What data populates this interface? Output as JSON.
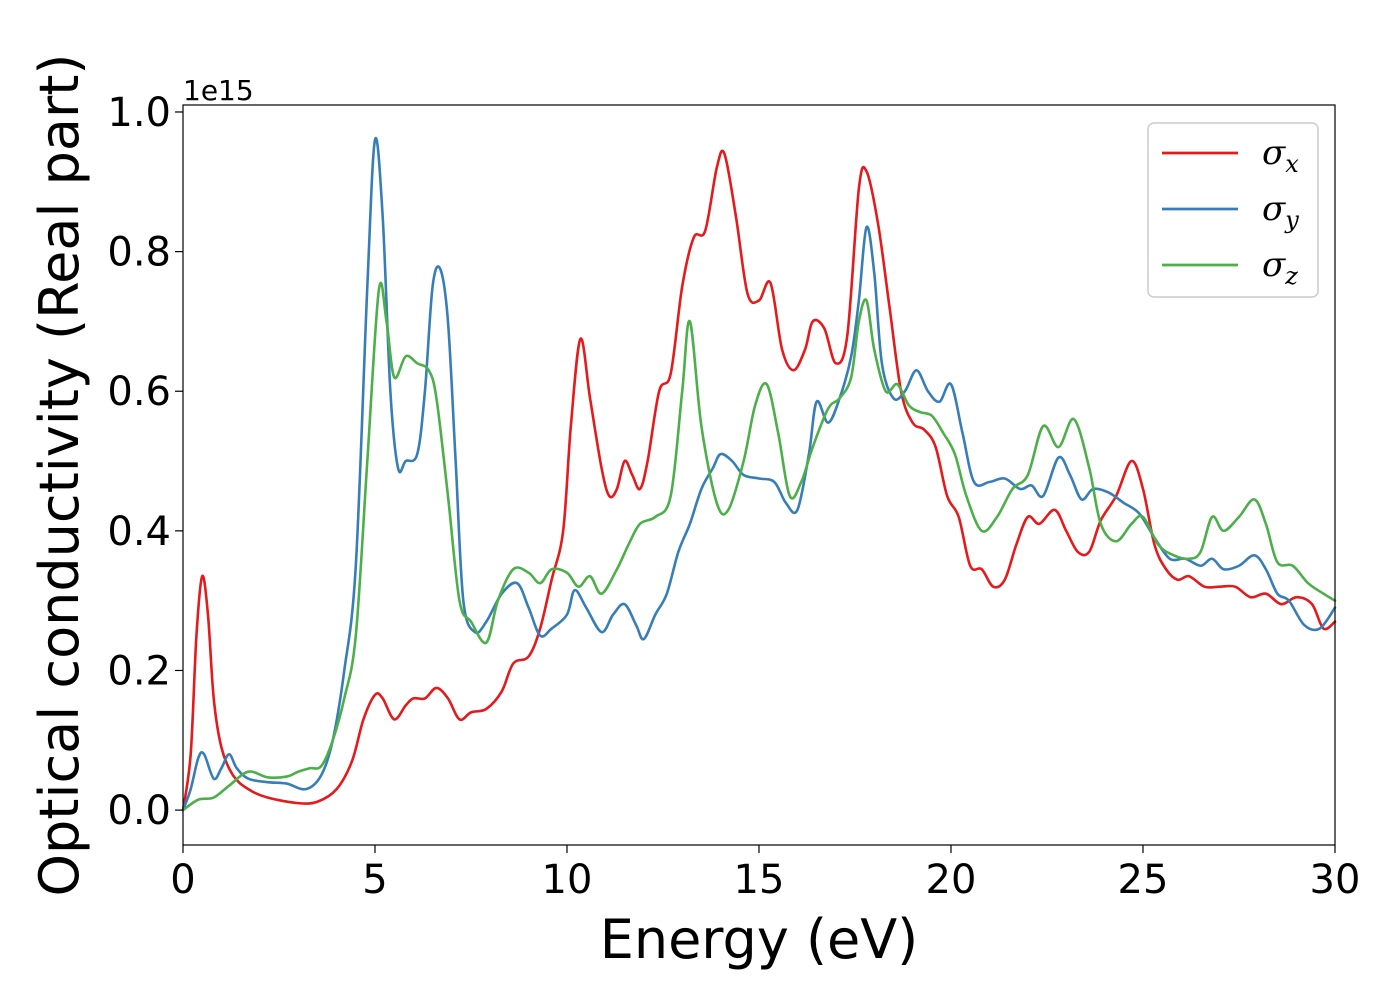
{
  "chart_data": {
    "type": "line",
    "xlabel": "Energy (eV)",
    "ylabel": "Optical conductivity (Real part)",
    "y_offset_label": "1e15",
    "xlim": [
      0,
      30
    ],
    "ylim": [
      -0.05,
      1.01
    ],
    "xticks": [
      0,
      5,
      10,
      15,
      20,
      25,
      30
    ],
    "xtick_labels": [
      "0",
      "5",
      "10",
      "15",
      "20",
      "25",
      "30"
    ],
    "yticks": [
      0.0,
      0.2,
      0.4,
      0.6,
      0.8,
      1.0
    ],
    "ytick_labels": [
      "0.0",
      "0.2",
      "0.4",
      "0.6",
      "0.8",
      "1.0"
    ],
    "grid": false,
    "legend_position": "top-right",
    "series": [
      {
        "name": "σ",
        "sub": "x",
        "color": "#e41a1c",
        "points": [
          [
            0,
            0
          ],
          [
            0.2,
            0.08
          ],
          [
            0.35,
            0.25
          ],
          [
            0.5,
            0.335
          ],
          [
            0.65,
            0.28
          ],
          [
            0.8,
            0.16
          ],
          [
            1.0,
            0.09
          ],
          [
            1.3,
            0.05
          ],
          [
            1.7,
            0.03
          ],
          [
            2.2,
            0.018
          ],
          [
            3.0,
            0.01
          ],
          [
            3.5,
            0.012
          ],
          [
            4.0,
            0.03
          ],
          [
            4.4,
            0.07
          ],
          [
            4.7,
            0.13
          ],
          [
            5.0,
            0.165
          ],
          [
            5.2,
            0.16
          ],
          [
            5.5,
            0.13
          ],
          [
            5.8,
            0.15
          ],
          [
            6.0,
            0.16
          ],
          [
            6.3,
            0.16
          ],
          [
            6.6,
            0.175
          ],
          [
            6.9,
            0.16
          ],
          [
            7.2,
            0.13
          ],
          [
            7.5,
            0.14
          ],
          [
            7.9,
            0.145
          ],
          [
            8.3,
            0.17
          ],
          [
            8.6,
            0.21
          ],
          [
            9.0,
            0.22
          ],
          [
            9.3,
            0.26
          ],
          [
            9.6,
            0.33
          ],
          [
            9.9,
            0.4
          ],
          [
            10.1,
            0.55
          ],
          [
            10.35,
            0.675
          ],
          [
            10.6,
            0.59
          ],
          [
            10.9,
            0.49
          ],
          [
            11.1,
            0.45
          ],
          [
            11.3,
            0.46
          ],
          [
            11.5,
            0.5
          ],
          [
            11.7,
            0.48
          ],
          [
            11.9,
            0.46
          ],
          [
            12.1,
            0.5
          ],
          [
            12.4,
            0.6
          ],
          [
            12.7,
            0.625
          ],
          [
            13.0,
            0.75
          ],
          [
            13.3,
            0.82
          ],
          [
            13.6,
            0.83
          ],
          [
            13.9,
            0.92
          ],
          [
            14.1,
            0.94
          ],
          [
            14.4,
            0.85
          ],
          [
            14.7,
            0.74
          ],
          [
            15.0,
            0.73
          ],
          [
            15.3,
            0.755
          ],
          [
            15.6,
            0.66
          ],
          [
            15.9,
            0.63
          ],
          [
            16.2,
            0.66
          ],
          [
            16.4,
            0.7
          ],
          [
            16.7,
            0.69
          ],
          [
            17.0,
            0.64
          ],
          [
            17.3,
            0.68
          ],
          [
            17.6,
            0.89
          ],
          [
            17.8,
            0.915
          ],
          [
            18.1,
            0.84
          ],
          [
            18.4,
            0.72
          ],
          [
            18.7,
            0.6
          ],
          [
            19.0,
            0.555
          ],
          [
            19.3,
            0.545
          ],
          [
            19.6,
            0.52
          ],
          [
            19.9,
            0.45
          ],
          [
            20.2,
            0.42
          ],
          [
            20.5,
            0.35
          ],
          [
            20.8,
            0.345
          ],
          [
            21.1,
            0.32
          ],
          [
            21.4,
            0.33
          ],
          [
            21.7,
            0.38
          ],
          [
            22.0,
            0.42
          ],
          [
            22.3,
            0.41
          ],
          [
            22.7,
            0.43
          ],
          [
            23.0,
            0.4
          ],
          [
            23.3,
            0.37
          ],
          [
            23.6,
            0.37
          ],
          [
            23.9,
            0.415
          ],
          [
            24.3,
            0.45
          ],
          [
            24.7,
            0.5
          ],
          [
            25.0,
            0.46
          ],
          [
            25.3,
            0.38
          ],
          [
            25.6,
            0.345
          ],
          [
            25.9,
            0.33
          ],
          [
            26.2,
            0.335
          ],
          [
            26.6,
            0.32
          ],
          [
            27.0,
            0.32
          ],
          [
            27.4,
            0.32
          ],
          [
            27.8,
            0.305
          ],
          [
            28.2,
            0.31
          ],
          [
            28.6,
            0.295
          ],
          [
            29.0,
            0.305
          ],
          [
            29.4,
            0.295
          ],
          [
            29.7,
            0.26
          ],
          [
            30,
            0.27
          ]
        ]
      },
      {
        "name": "σ",
        "sub": "y",
        "color": "#377eb8",
        "points": [
          [
            0,
            0
          ],
          [
            0.2,
            0.03
          ],
          [
            0.4,
            0.075
          ],
          [
            0.55,
            0.08
          ],
          [
            0.8,
            0.045
          ],
          [
            1.0,
            0.06
          ],
          [
            1.2,
            0.08
          ],
          [
            1.4,
            0.06
          ],
          [
            1.7,
            0.045
          ],
          [
            2.2,
            0.04
          ],
          [
            2.7,
            0.038
          ],
          [
            3.2,
            0.03
          ],
          [
            3.6,
            0.05
          ],
          [
            3.9,
            0.1
          ],
          [
            4.2,
            0.2
          ],
          [
            4.5,
            0.35
          ],
          [
            4.8,
            0.75
          ],
          [
            5.0,
            0.96
          ],
          [
            5.2,
            0.85
          ],
          [
            5.4,
            0.6
          ],
          [
            5.6,
            0.49
          ],
          [
            5.8,
            0.5
          ],
          [
            6.1,
            0.51
          ],
          [
            6.3,
            0.6
          ],
          [
            6.5,
            0.75
          ],
          [
            6.7,
            0.775
          ],
          [
            6.9,
            0.7
          ],
          [
            7.1,
            0.5
          ],
          [
            7.3,
            0.3
          ],
          [
            7.6,
            0.255
          ],
          [
            7.9,
            0.27
          ],
          [
            8.3,
            0.31
          ],
          [
            8.7,
            0.325
          ],
          [
            9.0,
            0.29
          ],
          [
            9.3,
            0.25
          ],
          [
            9.6,
            0.26
          ],
          [
            10.0,
            0.28
          ],
          [
            10.2,
            0.315
          ],
          [
            10.5,
            0.29
          ],
          [
            10.9,
            0.255
          ],
          [
            11.2,
            0.28
          ],
          [
            11.5,
            0.295
          ],
          [
            11.8,
            0.265
          ],
          [
            12.0,
            0.245
          ],
          [
            12.3,
            0.28
          ],
          [
            12.6,
            0.31
          ],
          [
            12.9,
            0.37
          ],
          [
            13.2,
            0.41
          ],
          [
            13.5,
            0.46
          ],
          [
            13.8,
            0.49
          ],
          [
            14.0,
            0.51
          ],
          [
            14.3,
            0.5
          ],
          [
            14.6,
            0.48
          ],
          [
            15.0,
            0.475
          ],
          [
            15.4,
            0.47
          ],
          [
            15.7,
            0.44
          ],
          [
            16.0,
            0.43
          ],
          [
            16.3,
            0.51
          ],
          [
            16.5,
            0.585
          ],
          [
            16.8,
            0.555
          ],
          [
            17.1,
            0.59
          ],
          [
            17.4,
            0.65
          ],
          [
            17.6,
            0.73
          ],
          [
            17.8,
            0.835
          ],
          [
            18.0,
            0.77
          ],
          [
            18.2,
            0.64
          ],
          [
            18.5,
            0.59
          ],
          [
            18.8,
            0.6
          ],
          [
            19.1,
            0.63
          ],
          [
            19.4,
            0.6
          ],
          [
            19.7,
            0.585
          ],
          [
            20.0,
            0.61
          ],
          [
            20.3,
            0.54
          ],
          [
            20.6,
            0.47
          ],
          [
            21.0,
            0.47
          ],
          [
            21.4,
            0.475
          ],
          [
            21.8,
            0.46
          ],
          [
            22.1,
            0.465
          ],
          [
            22.4,
            0.45
          ],
          [
            22.8,
            0.505
          ],
          [
            23.1,
            0.48
          ],
          [
            23.4,
            0.445
          ],
          [
            23.7,
            0.46
          ],
          [
            24.1,
            0.455
          ],
          [
            24.5,
            0.44
          ],
          [
            24.9,
            0.425
          ],
          [
            25.3,
            0.39
          ],
          [
            25.7,
            0.36
          ],
          [
            26.1,
            0.36
          ],
          [
            26.5,
            0.35
          ],
          [
            26.8,
            0.36
          ],
          [
            27.1,
            0.345
          ],
          [
            27.5,
            0.35
          ],
          [
            27.9,
            0.365
          ],
          [
            28.2,
            0.345
          ],
          [
            28.5,
            0.31
          ],
          [
            28.8,
            0.3
          ],
          [
            29.2,
            0.265
          ],
          [
            29.6,
            0.26
          ],
          [
            30,
            0.29
          ]
        ]
      },
      {
        "name": "σ",
        "sub": "z",
        "color": "#4daf4a",
        "points": [
          [
            0,
            0
          ],
          [
            0.4,
            0.015
          ],
          [
            0.8,
            0.018
          ],
          [
            1.2,
            0.035
          ],
          [
            1.7,
            0.055
          ],
          [
            2.2,
            0.047
          ],
          [
            2.7,
            0.048
          ],
          [
            3.0,
            0.055
          ],
          [
            3.3,
            0.06
          ],
          [
            3.6,
            0.063
          ],
          [
            3.9,
            0.1
          ],
          [
            4.2,
            0.16
          ],
          [
            4.5,
            0.25
          ],
          [
            4.8,
            0.5
          ],
          [
            5.1,
            0.745
          ],
          [
            5.3,
            0.7
          ],
          [
            5.5,
            0.62
          ],
          [
            5.8,
            0.65
          ],
          [
            6.1,
            0.64
          ],
          [
            6.4,
            0.63
          ],
          [
            6.6,
            0.59
          ],
          [
            6.9,
            0.45
          ],
          [
            7.2,
            0.3
          ],
          [
            7.5,
            0.27
          ],
          [
            7.9,
            0.24
          ],
          [
            8.2,
            0.3
          ],
          [
            8.6,
            0.345
          ],
          [
            9.0,
            0.34
          ],
          [
            9.3,
            0.325
          ],
          [
            9.6,
            0.345
          ],
          [
            10.0,
            0.34
          ],
          [
            10.3,
            0.32
          ],
          [
            10.6,
            0.335
          ],
          [
            10.9,
            0.31
          ],
          [
            11.3,
            0.345
          ],
          [
            11.6,
            0.38
          ],
          [
            11.9,
            0.41
          ],
          [
            12.3,
            0.42
          ],
          [
            12.7,
            0.45
          ],
          [
            13.0,
            0.6
          ],
          [
            13.2,
            0.7
          ],
          [
            13.5,
            0.55
          ],
          [
            13.9,
            0.44
          ],
          [
            14.2,
            0.43
          ],
          [
            14.6,
            0.5
          ],
          [
            14.9,
            0.58
          ],
          [
            15.2,
            0.61
          ],
          [
            15.5,
            0.54
          ],
          [
            15.8,
            0.45
          ],
          [
            16.1,
            0.47
          ],
          [
            16.4,
            0.52
          ],
          [
            16.8,
            0.575
          ],
          [
            17.1,
            0.59
          ],
          [
            17.4,
            0.62
          ],
          [
            17.6,
            0.7
          ],
          [
            17.8,
            0.73
          ],
          [
            18.0,
            0.66
          ],
          [
            18.3,
            0.6
          ],
          [
            18.6,
            0.61
          ],
          [
            18.9,
            0.58
          ],
          [
            19.2,
            0.57
          ],
          [
            19.5,
            0.565
          ],
          [
            19.8,
            0.54
          ],
          [
            20.1,
            0.51
          ],
          [
            20.4,
            0.45
          ],
          [
            20.8,
            0.4
          ],
          [
            21.2,
            0.42
          ],
          [
            21.6,
            0.46
          ],
          [
            22.0,
            0.48
          ],
          [
            22.4,
            0.55
          ],
          [
            22.8,
            0.52
          ],
          [
            23.2,
            0.56
          ],
          [
            23.6,
            0.49
          ],
          [
            23.9,
            0.41
          ],
          [
            24.3,
            0.385
          ],
          [
            24.7,
            0.41
          ],
          [
            25.0,
            0.42
          ],
          [
            25.4,
            0.38
          ],
          [
            25.8,
            0.365
          ],
          [
            26.2,
            0.36
          ],
          [
            26.5,
            0.37
          ],
          [
            26.8,
            0.42
          ],
          [
            27.1,
            0.4
          ],
          [
            27.5,
            0.42
          ],
          [
            27.9,
            0.445
          ],
          [
            28.2,
            0.41
          ],
          [
            28.5,
            0.355
          ],
          [
            28.9,
            0.35
          ],
          [
            29.3,
            0.325
          ],
          [
            29.7,
            0.31
          ],
          [
            30,
            0.3
          ]
        ]
      }
    ]
  }
}
